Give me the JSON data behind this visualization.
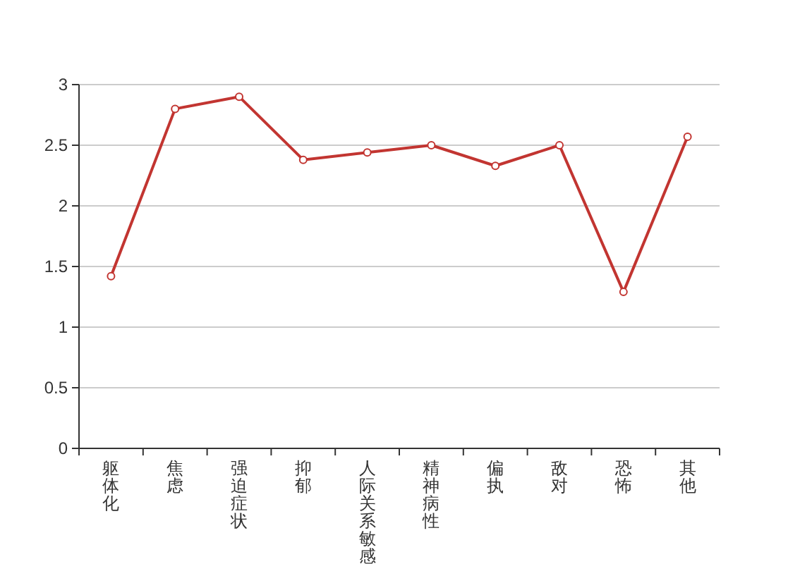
{
  "chart_data": {
    "type": "line",
    "categories": [
      "躯体化",
      "焦虑",
      "强迫症状",
      "抑郁",
      "人际关系敏感",
      "精神病性",
      "偏执",
      "敌对",
      "恐怖",
      "其他"
    ],
    "series": [
      {
        "color": "#c23531",
        "values": [
          1.42,
          2.8,
          2.9,
          2.38,
          2.44,
          2.5,
          2.33,
          2.5,
          1.29,
          2.57
        ]
      }
    ],
    "ylim": [
      0,
      3
    ],
    "yticks": [
      0,
      0.5,
      1,
      1.5,
      2,
      2.5,
      3
    ],
    "grid": "y",
    "marker": "circle",
    "line_style": "solid"
  }
}
